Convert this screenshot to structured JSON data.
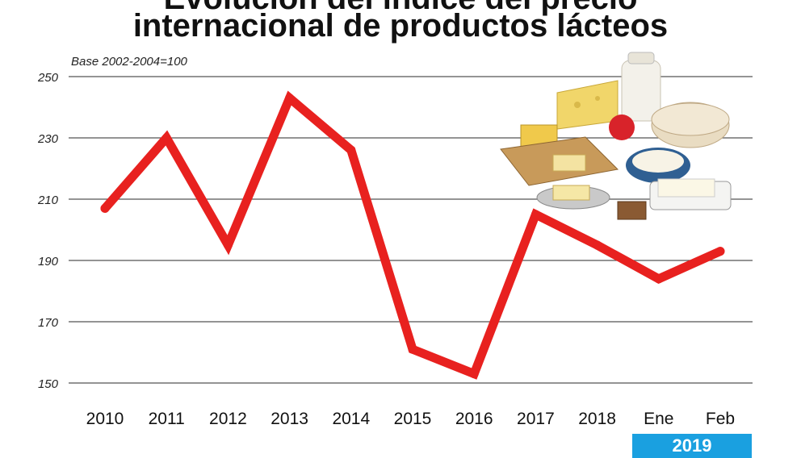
{
  "title_line1": "Evolución del índice del precio",
  "title_line2": "internacional de productos lácteos",
  "base_note": "Base 2002-2004=100",
  "year_badge": "2019",
  "colors": {
    "line": "#e8211f",
    "grid": "#555555",
    "badge": "#1aa0e0"
  },
  "illustration": "dairy-products-image",
  "chart_data": {
    "type": "line",
    "categories": [
      "2010",
      "2011",
      "2012",
      "2013",
      "2014",
      "2015",
      "2016",
      "2017",
      "2018",
      "Ene",
      "Feb"
    ],
    "series": [
      {
        "values": [
          207,
          230,
          195,
          243,
          226,
          161,
          153,
          205,
          195,
          184,
          193
        ]
      }
    ],
    "ylim": [
      150,
      250
    ],
    "yticks": [
      150,
      170,
      190,
      210,
      230,
      250
    ],
    "grid": true,
    "title": "",
    "xlabel": "",
    "ylabel": ""
  }
}
